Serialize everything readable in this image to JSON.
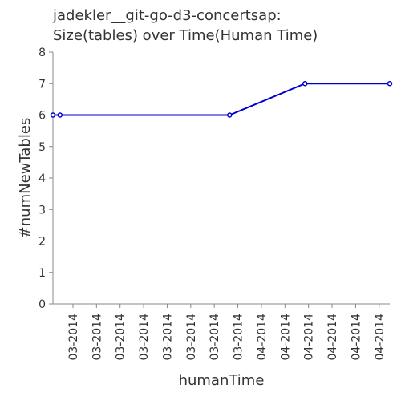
{
  "chart_data": {
    "type": "line",
    "title_lines": [
      "jadekler__git-go-d3-concertsap:",
      "Size(tables) over Time(Human Time)"
    ],
    "xlabel": "humanTime",
    "ylabel": "#numNewTables",
    "ylim": [
      0,
      8
    ],
    "y_ticks": [
      0,
      1,
      2,
      3,
      4,
      5,
      6,
      7,
      8
    ],
    "x_tick_labels": [
      "03-2014",
      "03-2014",
      "03-2014",
      "03-2014",
      "03-2014",
      "03-2014",
      "03-2014",
      "03-2014",
      "04-2014",
      "04-2014",
      "04-2014",
      "04-2014",
      "04-2014",
      "04-2014"
    ],
    "x_ticks": [
      0.85,
      1.85,
      2.85,
      3.85,
      4.85,
      5.85,
      6.85,
      7.85,
      8.85,
      9.85,
      10.85,
      11.85,
      12.85,
      13.85
    ],
    "xlim": [
      0,
      14.3
    ],
    "grid": false,
    "series": [
      {
        "color": "#0000cc",
        "x": [
          0,
          0.3,
          7.5,
          10.7,
          14.3
        ],
        "y": [
          6,
          6,
          6,
          7,
          7
        ]
      }
    ]
  }
}
